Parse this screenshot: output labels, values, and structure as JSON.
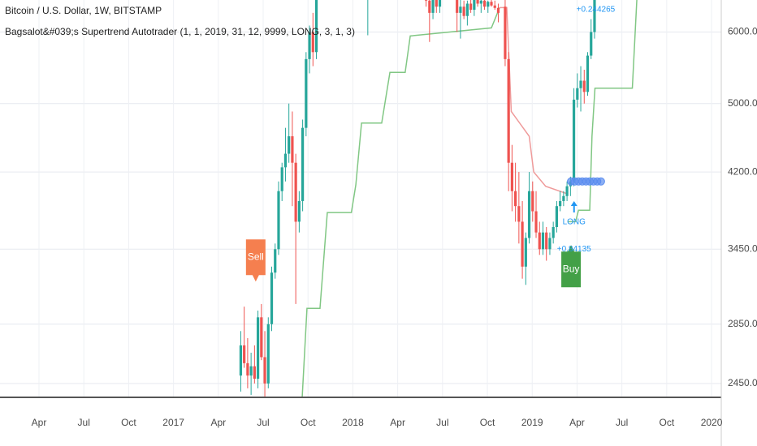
{
  "chart_data": {
    "type": "candlestick",
    "title": "Bitcoin / U.S. Dollar, 1W, BITSTAMP",
    "subtitle": "Bagsalot&#039;s Supertrend Autotrader (1, 1, 2019, 31, 12, 9999, LONG, 3, 1, 3)",
    "log_scale": true,
    "grid": true,
    "up_color": "#26a69a",
    "down_color": "#ef5350",
    "xlim": [
      0.39,
      48.65
    ],
    "ylim": [
      2365,
      6510
    ],
    "xticks": [
      {
        "value": 3,
        "label": "Apr"
      },
      {
        "value": 6,
        "label": "Jul"
      },
      {
        "value": 9,
        "label": "Oct"
      },
      {
        "value": 12,
        "label": "2017"
      },
      {
        "value": 15,
        "label": "Apr"
      },
      {
        "value": 18,
        "label": "Jul"
      },
      {
        "value": 21,
        "label": "Oct"
      },
      {
        "value": 24,
        "label": "2018"
      },
      {
        "value": 27,
        "label": "Apr"
      },
      {
        "value": 30,
        "label": "Jul"
      },
      {
        "value": 33,
        "label": "Oct"
      },
      {
        "value": 36,
        "label": "2019"
      },
      {
        "value": 39,
        "label": "Apr"
      },
      {
        "value": 42,
        "label": "Jul"
      },
      {
        "value": 45,
        "label": "Oct"
      },
      {
        "value": 48,
        "label": "2020"
      }
    ],
    "yticks": [
      {
        "value": 6000,
        "label": "6000.00"
      },
      {
        "value": 5000,
        "label": "5000.00"
      },
      {
        "value": 4200,
        "label": "4200.00"
      },
      {
        "value": 3450,
        "label": "3450.00"
      },
      {
        "value": 2850,
        "label": "2850.00"
      },
      {
        "value": 2450,
        "label": "2450.00"
      }
    ],
    "candles": {
      "x": [
        16.5,
        16.73,
        16.96,
        17.19,
        17.42,
        17.65,
        17.88,
        18.11,
        18.34,
        18.57,
        18.8,
        19.03,
        19.26,
        19.49,
        19.72,
        19.95,
        20.18,
        20.41,
        20.64,
        20.87,
        21.1,
        21.33,
        21.56,
        25.0,
        28.9,
        29.13,
        29.36,
        29.59,
        29.82,
        30.97,
        31.2,
        31.43,
        31.66,
        31.89,
        32.12,
        32.35,
        32.58,
        32.81,
        33.04,
        33.27,
        33.5,
        33.73,
        34.19,
        34.42,
        34.65,
        34.88,
        35.11,
        35.34,
        35.57,
        35.8,
        36.03,
        36.26,
        36.49,
        36.72,
        36.95,
        37.18,
        37.41,
        37.64,
        37.87,
        38.1,
        38.33,
        38.56,
        38.79,
        39.02,
        39.25,
        39.48,
        39.71,
        39.94,
        40.17
      ],
      "open": [
        2500,
        2700,
        2580,
        2500,
        2560,
        2480,
        2900,
        2620,
        2450,
        2850,
        3250,
        3450,
        4000,
        4250,
        4400,
        4600,
        4300,
        3700,
        3900,
        4700,
        5600,
        6000,
        5700,
        8000,
        7000,
        6500,
        6300,
        6600,
        6400,
        7000,
        6300,
        6400,
        6250,
        6450,
        6350,
        6600,
        6450,
        6500,
        6400,
        6480,
        6420,
        6380,
        6400,
        5600,
        4300,
        4000,
        3850,
        3700,
        3300,
        3550,
        4000,
        3800,
        3600,
        3450,
        3600,
        3450,
        3550,
        3650,
        3850,
        3900,
        3950,
        4050,
        4100,
        5050,
        5200,
        5300,
        5150,
        5650,
        6000
      ],
      "high": [
        2800,
        2980,
        2750,
        2650,
        2700,
        2950,
        3000,
        2800,
        2900,
        3300,
        3500,
        4100,
        4300,
        4700,
        5000,
        4900,
        4400,
        4000,
        4800,
        5700,
        6100,
        6300,
        7500,
        9000,
        7100,
        6800,
        6700,
        6900,
        7600,
        7100,
        6600,
        6500,
        6500,
        6600,
        6700,
        6700,
        6550,
        6600,
        6500,
        6600,
        6500,
        6450,
        6550,
        5700,
        4500,
        4300,
        4200,
        3900,
        3600,
        4200,
        4100,
        4000,
        3700,
        3700,
        3650,
        3600,
        3700,
        3900,
        4000,
        4000,
        4100,
        4150,
        5200,
        5400,
        5500,
        5450,
        5700,
        6200,
        8300
      ],
      "low": [
        2400,
        2550,
        2420,
        2380,
        2450,
        2420,
        2600,
        2350,
        2420,
        2800,
        3200,
        3400,
        3900,
        4100,
        4300,
        3850,
        3000,
        3600,
        3800,
        4600,
        5400,
        5500,
        5600,
        5950,
        6400,
        5850,
        6200,
        6300,
        6300,
        6000,
        5900,
        6200,
        6100,
        6300,
        6250,
        6400,
        6300,
        6350,
        6300,
        6400,
        6350,
        6150,
        5500,
        4000,
        3800,
        3700,
        3500,
        3200,
        3150,
        3500,
        3700,
        3550,
        3400,
        3400,
        3350,
        3400,
        3500,
        3600,
        3800,
        3850,
        3900,
        3950,
        4050,
        4950,
        4900,
        5000,
        5100,
        5600,
        5900
      ],
      "close": [
        2700,
        2580,
        2500,
        2560,
        2480,
        2900,
        2620,
        2450,
        2850,
        3250,
        3450,
        4000,
        4250,
        4400,
        4600,
        4300,
        3700,
        3900,
        4700,
        5600,
        6000,
        5700,
        7300,
        8200,
        6500,
        6300,
        6600,
        6400,
        7400,
        6300,
        6400,
        6250,
        6450,
        6350,
        6600,
        6450,
        6500,
        6400,
        6480,
        6420,
        6380,
        6300,
        5600,
        4300,
        4000,
        3850,
        3700,
        3300,
        3550,
        4000,
        3800,
        3600,
        3450,
        3600,
        3450,
        3550,
        3650,
        3850,
        3900,
        3950,
        4050,
        4100,
        5050,
        5200,
        5300,
        5150,
        5650,
        6000,
        7800
      ]
    },
    "supertrend": [
      {
        "color": "#81c784",
        "x": [
          20.61,
          20.93,
          21.8,
          22.29,
          23.9,
          24.2,
          24.58,
          25.93,
          26.48,
          27.5,
          27.84,
          33.27,
          33.82
        ],
        "values": [
          2365,
          2967,
          2967,
          3787,
          3787,
          4066,
          4758,
          4758,
          5413,
          5413,
          5940,
          6063,
          6385
        ]
      },
      {
        "color": "#ef9a9a",
        "x": [
          33.82,
          34.3,
          34.6,
          35.8,
          36.1,
          36.9,
          38.4
        ],
        "values": [
          6385,
          6385,
          4900,
          4600,
          4200,
          4050,
          3970
        ]
      },
      {
        "color": "#81c784",
        "x": [
          38.4,
          38.9,
          39.1,
          39.85,
          40.0,
          40.2,
          42.7,
          43.0
        ],
        "values": [
          3700,
          3700,
          3810,
          3810,
          4600,
          5200,
          5200,
          6510
        ]
      }
    ],
    "position_markers": {
      "color": "#5b8def",
      "x": [
        38.6,
        38.85,
        39.1,
        39.35,
        39.6,
        39.85,
        40.1,
        40.35,
        40.6
      ],
      "values": [
        4100,
        4100,
        4100,
        4100,
        4100,
        4100,
        4100,
        4100,
        4100
      ]
    },
    "annotations": [
      {
        "text": "Sell",
        "kind": "label-down",
        "color": "#f57f4f",
        "x": 17.5,
        "y": 3150
      },
      {
        "text": "Buy",
        "kind": "label-up",
        "color": "#43a047",
        "x": 38.6,
        "y": 3500
      },
      {
        "text": "LONG",
        "kind": "arrow-up",
        "color": "#2196f3",
        "x": 38.8,
        "y": 3900
      },
      {
        "text": "+0.84135",
        "kind": "text",
        "color": "#2196f3",
        "x": 38.8,
        "y": 3450
      },
      {
        "text": "+0.244265",
        "kind": "text",
        "color": "#2196f3",
        "x": 40.25,
        "y": 6350
      }
    ]
  }
}
